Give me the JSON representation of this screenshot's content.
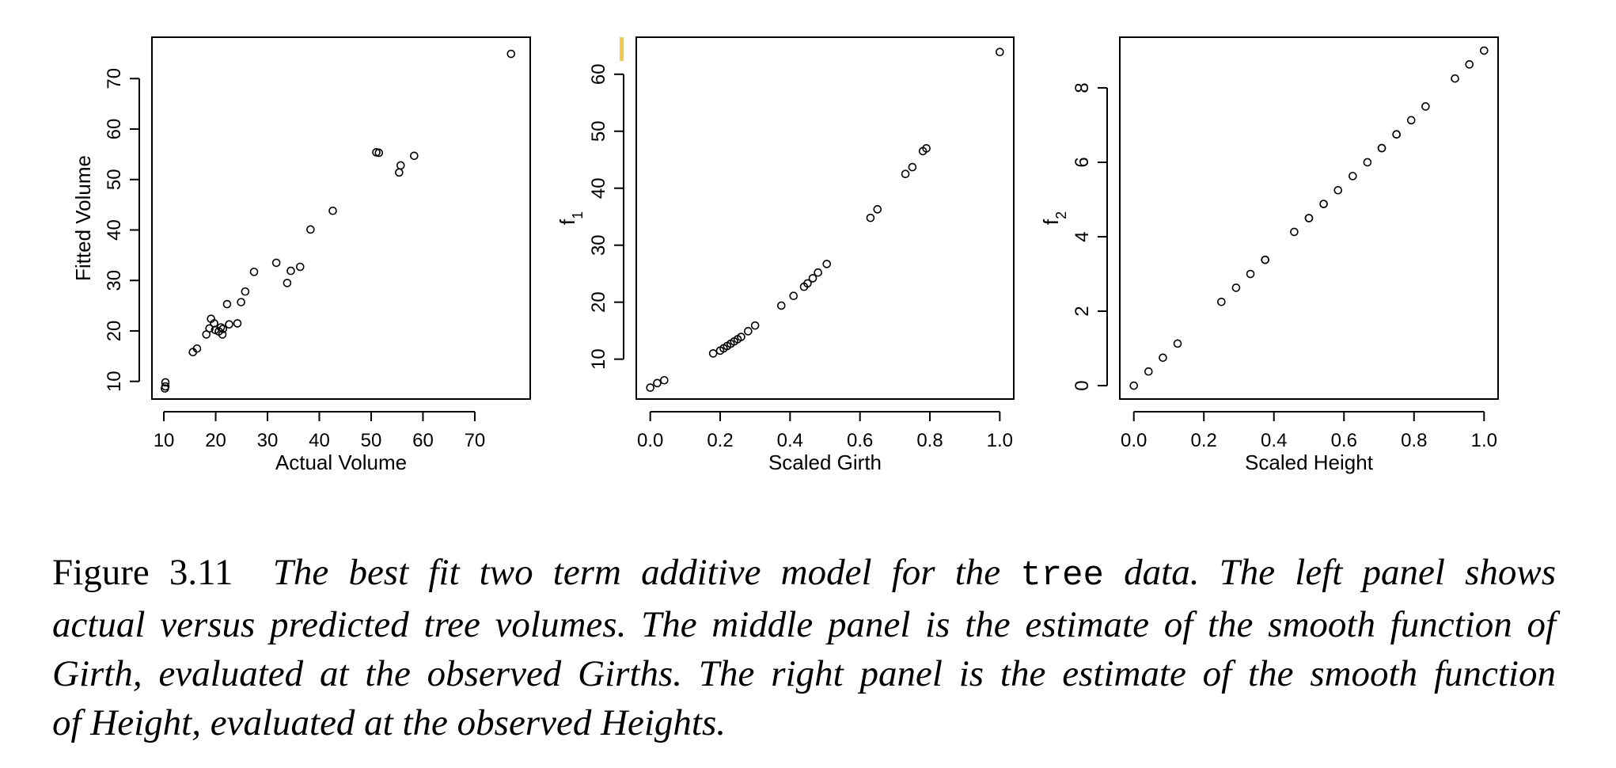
{
  "chart_data": [
    {
      "type": "scatter",
      "title": "",
      "xlabel": "Actual Volume",
      "ylabel": "Fitted Volume",
      "xlim": [
        7.7,
        80.7
      ],
      "ylim": [
        6.5,
        78.2
      ],
      "xticks": [
        10,
        20,
        30,
        40,
        50,
        60,
        70
      ],
      "yticks": [
        10,
        20,
        30,
        40,
        50,
        60,
        70
      ],
      "marker": "open-circle",
      "grid": false,
      "series": [
        {
          "x": [
            10.3,
            10.3,
            10.2,
            15.6,
            16.4,
            18.2,
            18.8,
            19.1,
            19.7,
            19.9,
            20.6,
            21.0,
            21.3,
            21.4,
            22.2,
            22.6,
            24.2,
            24.9,
            25.7,
            27.4,
            31.7,
            33.8,
            34.5,
            36.3,
            38.3,
            42.6,
            51.0,
            51.5,
            55.4,
            55.7,
            58.3,
            77.0
          ],
          "y": [
            9.8,
            9.0,
            8.6,
            15.8,
            16.5,
            19.3,
            20.5,
            22.4,
            21.5,
            20.2,
            19.9,
            20.7,
            19.3,
            20.4,
            25.3,
            21.3,
            21.5,
            25.7,
            27.8,
            31.7,
            33.5,
            29.5,
            31.9,
            32.7,
            40.1,
            43.8,
            55.4,
            55.3,
            51.4,
            52.8,
            54.7,
            74.9
          ]
        }
      ]
    },
    {
      "type": "scatter",
      "title": "",
      "xlabel": "Scaled Girth",
      "ylabel": "f",
      "ylabel_subscript": "1",
      "xlim": [
        -0.04,
        1.04
      ],
      "ylim": [
        3.0,
        66.5
      ],
      "xticks": [
        "0.0",
        "0.2",
        "0.4",
        "0.6",
        "0.8",
        "1.0"
      ],
      "yticks": [
        10,
        20,
        30,
        40,
        50,
        60
      ],
      "marker": "open-circle",
      "grid": false,
      "series": [
        {
          "x": [
            0.0,
            0.02,
            0.04,
            0.18,
            0.2,
            0.21,
            0.22,
            0.23,
            0.24,
            0.25,
            0.26,
            0.28,
            0.3,
            0.375,
            0.41,
            0.44,
            0.45,
            0.465,
            0.48,
            0.505,
            0.63,
            0.65,
            0.73,
            0.75,
            0.78,
            0.79,
            1.0
          ],
          "y": [
            5.0,
            5.8,
            6.3,
            11.0,
            11.5,
            11.9,
            12.3,
            12.7,
            13.1,
            13.5,
            13.9,
            14.9,
            15.9,
            19.4,
            21.1,
            22.7,
            23.3,
            24.2,
            25.2,
            26.7,
            34.8,
            36.3,
            42.5,
            43.7,
            46.5,
            47.0,
            63.9
          ]
        }
      ]
    },
    {
      "type": "scatter",
      "title": "",
      "xlabel": "Scaled Height",
      "ylabel": "f",
      "ylabel_subscript": "2",
      "xlim": [
        -0.04,
        1.04
      ],
      "ylim": [
        -0.36,
        9.36
      ],
      "xticks": [
        "0.0",
        "0.2",
        "0.4",
        "0.6",
        "0.8",
        "1.0"
      ],
      "yticks": [
        0,
        2,
        4,
        6,
        8
      ],
      "marker": "open-circle",
      "grid": false,
      "series": [
        {
          "x": [
            0.0,
            0.042,
            0.083,
            0.125,
            0.25,
            0.292,
            0.333,
            0.375,
            0.375,
            0.458,
            0.5,
            0.5,
            0.542,
            0.542,
            0.583,
            0.625,
            0.667,
            0.708,
            0.708,
            0.75,
            0.75,
            0.792,
            0.833,
            0.917,
            0.958,
            1.0
          ],
          "y": [
            0.0,
            0.38,
            0.75,
            1.13,
            2.25,
            2.63,
            3.0,
            3.38,
            3.38,
            4.13,
            4.5,
            4.5,
            4.88,
            4.88,
            5.25,
            5.63,
            6.0,
            6.38,
            6.38,
            6.75,
            6.75,
            7.13,
            7.5,
            8.25,
            8.63,
            9.0
          ]
        }
      ]
    }
  ],
  "caption": {
    "label": "Figure 3.11",
    "part1": "The best fit two term additive model for the",
    "code": "tree",
    "part2": "data. The left panel shows",
    "line2": "actual versus predicted tree volumes. The middle panel is the estimate of the smooth function of",
    "line3": "Girth, evaluated at the observed Girths. The right panel is the estimate of the smooth function",
    "line4": "of Height, evaluated at the observed Heights."
  },
  "colors": {
    "marker_stroke": "#000000",
    "highlight_bar": "#f0c850"
  }
}
